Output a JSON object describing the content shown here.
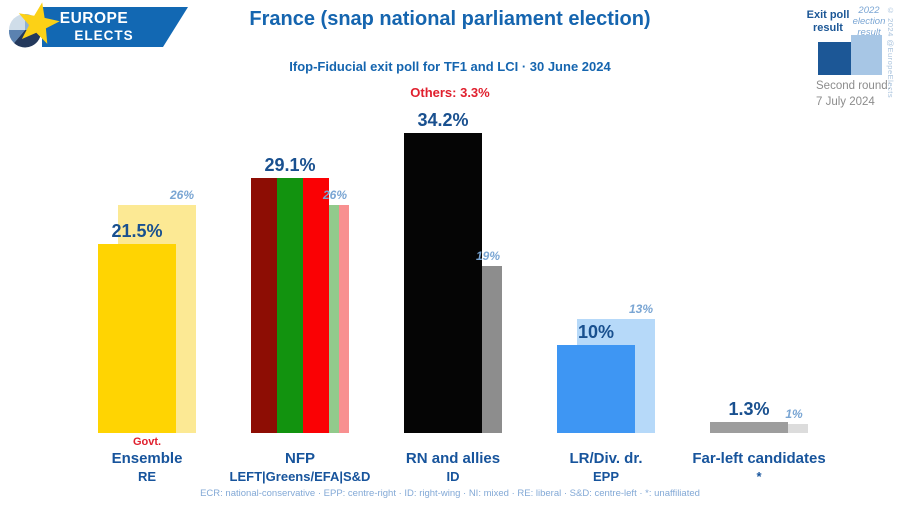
{
  "logo": {
    "line1": "EUROPE",
    "line2": "ELECTS"
  },
  "header": {
    "title": "France (snap national parliament election)",
    "subtitle": "Ifop-Fiducial exit poll for TF1 and LCI · 30 June 2024",
    "others": "Others: 3.3%"
  },
  "legend": {
    "exit_poll_line1": "Exit poll",
    "exit_poll_line2": "result",
    "prev_line1": "2022",
    "prev_line2": "election",
    "prev_line3": "result",
    "exit_color": "#1c5796",
    "prev_color": "#a7c6e5"
  },
  "side_note": {
    "second_round_label": "Second round:",
    "second_round_date": "7 July 2024"
  },
  "copyright": "© 2024 @EuropeElects",
  "footer": {
    "groups_key": "ECR: national-conservative · EPP: centre-right · ID: right-wing · NI: mixed · RE: liberal · S&D: centre-left · *: unaffiliated"
  },
  "palette": {
    "title_blue": "#1565af",
    "value_label_blue": "#19508f",
    "prev_label_blue": "#79a5d3",
    "red_accent": "#e0202e",
    "gray_text": "#8c8c8c"
  },
  "chart_data": {
    "type": "bar",
    "title": "France (snap national parliament election)",
    "subtitle": "Ifop-Fiducial exit poll for TF1 and LCI · 30 June 2024",
    "others_pct": 3.3,
    "unit": "%",
    "ylim": [
      0,
      36
    ],
    "grid": false,
    "legend_position": "top-right",
    "series": [
      {
        "name": "Exit poll result"
      },
      {
        "name": "2022 election result"
      }
    ],
    "bars": [
      {
        "party": "Ensemble",
        "ep_group": "RE",
        "note": "Govt.",
        "value": 21.5,
        "value_label": "21.5%",
        "prev_value": 26,
        "prev_label": "26%",
        "fill": [
          [
            "#ffd402",
            100
          ]
        ],
        "prev_fill": [
          [
            "#fce994",
            100
          ]
        ]
      },
      {
        "party": "NFP",
        "ep_group": "LEFT|Greens/EFA|S&D",
        "note": "",
        "value": 29.1,
        "value_label": "29.1%",
        "prev_value": 26,
        "prev_label": "26%",
        "fill": [
          [
            "#8d0d04",
            33.4
          ],
          [
            "#12930f",
            66.7
          ],
          [
            "#fa0104",
            100
          ]
        ],
        "prev_fill": [
          [
            "#92ca8c",
            87.5
          ],
          [
            "#f89090",
            100
          ]
        ]
      },
      {
        "party": "RN and allies",
        "ep_group": "ID",
        "note": "",
        "value": 34.2,
        "value_label": "34.2%",
        "prev_value": 19,
        "prev_label": "19%",
        "fill": [
          [
            "#050505",
            100
          ]
        ],
        "prev_fill": [
          [
            "#8d8d8d",
            100
          ]
        ]
      },
      {
        "party": "LR/Div. dr.",
        "ep_group": "EPP",
        "note": "",
        "value": 10,
        "value_label": "10%",
        "prev_value": 13,
        "prev_label": "13%",
        "fill": [
          [
            "#3e96f3",
            100
          ]
        ],
        "prev_fill": [
          [
            "#b6d9f9",
            100
          ]
        ]
      },
      {
        "party": "Far-left candidates",
        "ep_group": "*",
        "note": "",
        "value": 1.3,
        "value_label": "1.3%",
        "prev_value": 1,
        "prev_label": "1%",
        "fill": [
          [
            "#9d9d9d",
            100
          ]
        ],
        "prev_fill": [
          [
            "#dcdcdc",
            100
          ]
        ]
      }
    ]
  }
}
